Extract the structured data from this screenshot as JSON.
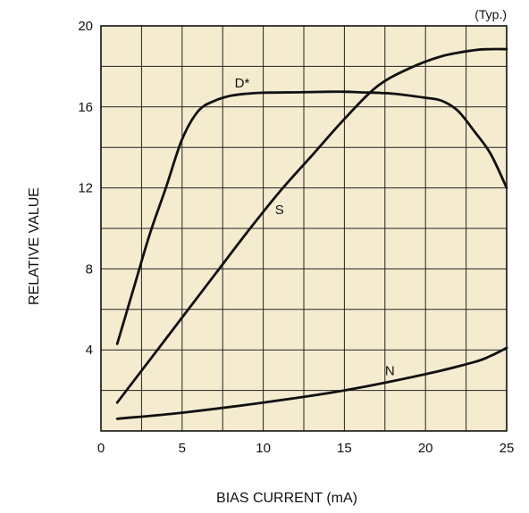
{
  "chart_data": {
    "type": "line",
    "note": "(Typ.)",
    "xlabel": "BIAS CURRENT (mA)",
    "ylabel": "RELATIVE VALUE",
    "xlim": [
      0,
      25
    ],
    "ylim": [
      0,
      20
    ],
    "x_ticks": [
      "0",
      "5",
      "10",
      "15",
      "20",
      "25"
    ],
    "y_ticks": [
      "4",
      "8",
      "12",
      "16",
      "20"
    ],
    "x_tick_values": [
      0,
      5,
      10,
      15,
      20,
      25
    ],
    "y_tick_values": [
      4,
      8,
      12,
      16,
      20
    ],
    "x_minor_step": 2.5,
    "y_minor_step": 2,
    "grid": true,
    "background": "#f5ecd0",
    "line_color": "#111111",
    "series": [
      {
        "name": "D*",
        "x": [
          1,
          2,
          3,
          4,
          5,
          6,
          7,
          8,
          9,
          10,
          12,
          14,
          15,
          16,
          18,
          20,
          21,
          22,
          23,
          24,
          25
        ],
        "y": [
          4.3,
          7.0,
          9.7,
          12.0,
          14.4,
          15.8,
          16.3,
          16.55,
          16.65,
          16.7,
          16.72,
          16.75,
          16.75,
          16.72,
          16.65,
          16.45,
          16.3,
          15.8,
          14.8,
          13.7,
          12.0
        ]
      },
      {
        "name": "S",
        "x": [
          1,
          3,
          5,
          7,
          9,
          11,
          13,
          15,
          17,
          19,
          21,
          23,
          24,
          25
        ],
        "y": [
          1.4,
          3.5,
          5.6,
          7.7,
          9.8,
          11.8,
          13.6,
          15.4,
          17.0,
          17.9,
          18.5,
          18.8,
          18.85,
          18.85
        ]
      },
      {
        "name": "N",
        "x": [
          1,
          5,
          10,
          15,
          20,
          23,
          24,
          25
        ],
        "y": [
          0.6,
          0.9,
          1.4,
          2.0,
          2.8,
          3.4,
          3.7,
          4.1
        ]
      }
    ],
    "series_label_positions": [
      {
        "name": "D*",
        "x": 8.7,
        "y": 16.95
      },
      {
        "name": "S",
        "x": 11.0,
        "y": 10.7
      },
      {
        "name": "N",
        "x": 17.8,
        "y": 2.75
      }
    ]
  }
}
